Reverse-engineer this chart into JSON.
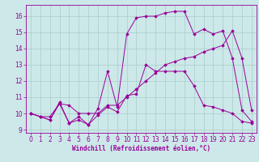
{
  "xlabel": "Windchill (Refroidissement éolien,°C)",
  "bg_color": "#cce8e8",
  "line_color": "#990099",
  "grid_color": "#aacccc",
  "xlim": [
    -0.5,
    23.5
  ],
  "ylim": [
    8.8,
    16.7
  ],
  "xticks": [
    0,
    1,
    2,
    3,
    4,
    5,
    6,
    7,
    8,
    9,
    10,
    11,
    12,
    13,
    14,
    15,
    16,
    17,
    18,
    19,
    20,
    21,
    22,
    23
  ],
  "yticks": [
    9,
    10,
    11,
    12,
    13,
    14,
    15,
    16
  ],
  "line1_x": [
    0,
    1,
    2,
    3,
    4,
    5,
    6,
    7,
    8,
    9,
    10,
    11,
    12,
    13,
    14,
    15,
    16,
    17,
    18,
    19,
    20,
    21,
    22,
    23
  ],
  "line1_y": [
    10.0,
    9.8,
    9.6,
    10.7,
    9.4,
    9.8,
    9.3,
    9.9,
    10.4,
    10.1,
    11.1,
    11.2,
    13.0,
    12.6,
    12.6,
    12.6,
    12.6,
    11.7,
    10.5,
    10.4,
    10.2,
    10.0,
    9.5,
    9.4
  ],
  "line2_x": [
    0,
    1,
    2,
    3,
    4,
    5,
    6,
    7,
    8,
    9,
    10,
    11,
    12,
    13,
    14,
    15,
    16,
    17,
    18,
    19,
    20,
    21,
    22,
    23
  ],
  "line2_y": [
    10.0,
    9.8,
    9.6,
    10.6,
    9.4,
    9.6,
    9.3,
    10.3,
    12.6,
    10.4,
    14.9,
    15.9,
    16.0,
    16.0,
    16.2,
    16.3,
    16.3,
    14.9,
    15.2,
    14.9,
    15.1,
    13.4,
    10.2,
    9.5
  ],
  "line3_x": [
    0,
    1,
    2,
    3,
    4,
    5,
    6,
    7,
    8,
    9,
    10,
    11,
    12,
    13,
    14,
    15,
    16,
    17,
    18,
    19,
    20,
    21,
    22,
    23
  ],
  "line3_y": [
    10.0,
    9.8,
    9.8,
    10.6,
    10.5,
    10.0,
    10.0,
    10.0,
    10.5,
    10.5,
    11.0,
    11.5,
    12.0,
    12.5,
    13.0,
    13.2,
    13.4,
    13.5,
    13.8,
    14.0,
    14.2,
    15.1,
    13.4,
    10.2
  ],
  "tick_fontsize": 5.5,
  "xlabel_fontsize": 5.5
}
